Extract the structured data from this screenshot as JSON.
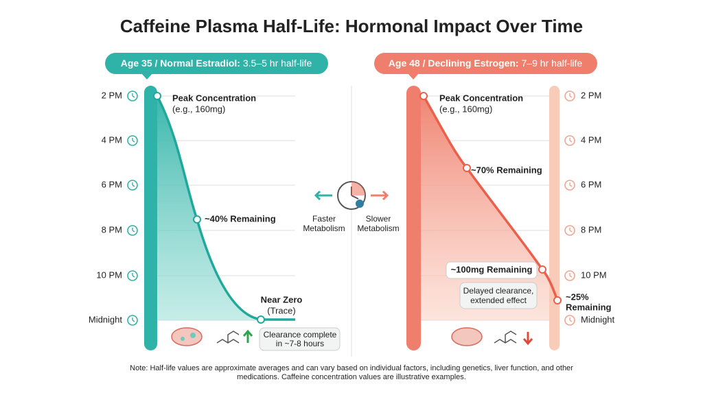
{
  "title": "Caffeine Plasma Half-Life: Hormonal Impact Over Time",
  "left_panel": {
    "header_bold": "Age 35 / Normal Estradiol:",
    "header_rest": "3.5–5 hr half-life",
    "times": [
      "2 PM",
      "4 PM",
      "6 PM",
      "8 PM",
      "10 PM",
      "Midnight"
    ],
    "peak_title": "Peak Concentration",
    "peak_sub": "(e.g., 160mg)",
    "mid": "~40% Remaining",
    "end_title": "Near Zero",
    "end_sub": "(Trace)",
    "callout": [
      "Clearance complete",
      "in ~7-8 hours"
    ]
  },
  "center": {
    "left_label": [
      "Faster",
      "Metabolism"
    ],
    "right_label": [
      "Slower",
      "Metabolism"
    ]
  },
  "right_panel": {
    "header_bold": "Age 48 / Declining Estrogen:",
    "header_rest": "7–9 hr half-life",
    "times": [
      "2 PM",
      "4 PM",
      "6 PM",
      "8 PM",
      "10 PM",
      "Midnight"
    ],
    "peak_title": "Peak Concentration",
    "peak_sub": "(e.g., 160mg)",
    "mid": "~70% Remaining",
    "late": "~100mg Remaining",
    "callout": [
      "Delayed clearance,",
      "extended effect"
    ],
    "end": [
      "~25%",
      "Remaining"
    ]
  },
  "note": [
    "Note: Half-life values are approximate averages and can vary based on individual factors, including genetics, liver function, and other",
    "medications. Caffeine concentration values are illustrative examples."
  ]
}
